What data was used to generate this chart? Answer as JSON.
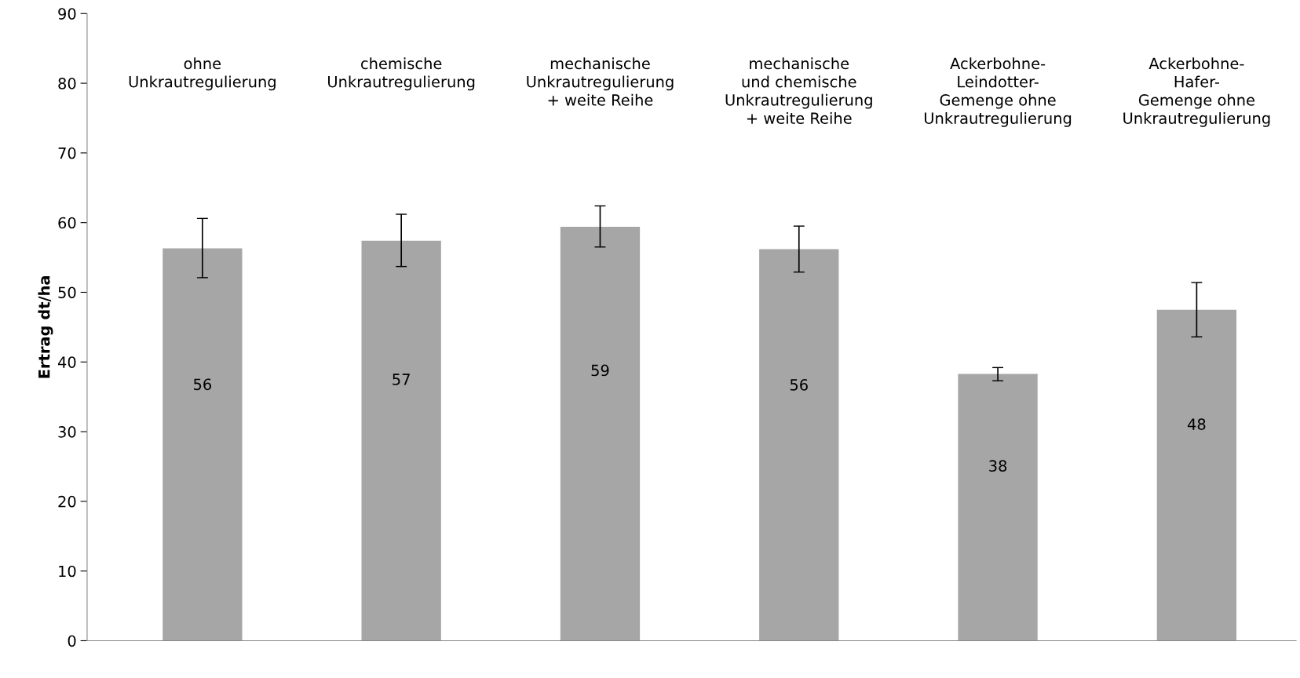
{
  "chart_data": {
    "type": "bar",
    "ylabel": "Ertrag dt/ha",
    "categories": [
      "ohne\nUnkrautregulierung",
      "chemische\nUnkrautregulierung",
      "mechanische\nUnkrautregulierung\n+ weite Reihe",
      "mechanische\nund chemische\nUnkrautregulierung\n+ weite Reihe",
      "Ackerbohne-\nLeindotter-\nGemenge ohne\nUnkrautregulierung",
      "Ackerbohne-\nHafer-\nGemenge ohne\nUnkrautregulierung"
    ],
    "values": [
      56.3,
      57.4,
      59.4,
      56.2,
      38.3,
      47.5
    ],
    "value_labels": [
      "56",
      "57",
      "59",
      "56",
      "38",
      "48"
    ],
    "errors": [
      [
        52.1,
        60.6
      ],
      [
        53.7,
        61.2
      ],
      [
        56.5,
        62.4
      ],
      [
        52.9,
        59.5
      ],
      [
        37.3,
        39.2
      ],
      [
        43.6,
        51.4
      ]
    ],
    "color": "#a6a6a6",
    "ylim": [
      0,
      90
    ],
    "yticks": [
      0,
      10,
      20,
      30,
      40,
      50,
      60,
      70,
      80,
      90
    ],
    "grid": false,
    "legend": false
  }
}
